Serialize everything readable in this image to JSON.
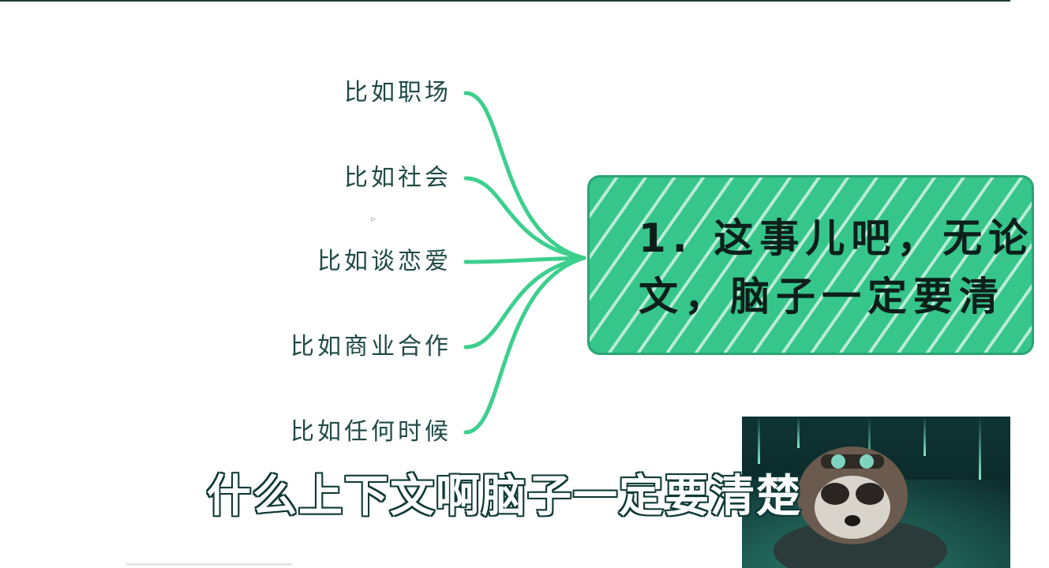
{
  "branches": [
    {
      "label": "比如职场"
    },
    {
      "label": "比如社会"
    },
    {
      "label": "比如谈恋爱"
    },
    {
      "label": "比如商业合作"
    },
    {
      "label": "比如任何时候"
    }
  ],
  "main_node": {
    "line1": "1. 这事儿吧，无论",
    "line2": "文，脑子一定要清"
  },
  "subtitle": "什么上下文啊脑子一定要清楚",
  "colors": {
    "accent": "#36c58a",
    "connector": "#3ccf8e",
    "label_text": "#1f4a45",
    "subtitle_stroke": "#0f3a36"
  }
}
